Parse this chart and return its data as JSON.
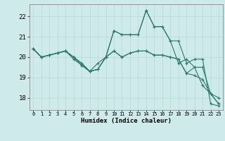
{
  "title": "",
  "xlabel": "Humidex (Indice chaleur)",
  "ylabel": "",
  "background_color": "#ceeaea",
  "line_color": "#2a7a6a",
  "grid_color": "#b8d8d8",
  "x_ticks": [
    0,
    1,
    2,
    3,
    4,
    5,
    6,
    7,
    8,
    9,
    10,
    11,
    12,
    13,
    14,
    15,
    16,
    17,
    18,
    19,
    20,
    21,
    22,
    23
  ],
  "y_ticks": [
    18,
    19,
    20,
    21,
    22
  ],
  "ylim": [
    17.4,
    22.6
  ],
  "xlim": [
    -0.5,
    23.5
  ],
  "series": [
    [
      20.4,
      20.0,
      20.1,
      20.2,
      20.3,
      20.0,
      19.6,
      19.3,
      19.7,
      20.0,
      21.3,
      21.1,
      21.1,
      21.1,
      22.3,
      21.5,
      21.5,
      20.8,
      20.8,
      19.7,
      19.9,
      19.9,
      17.7,
      17.6
    ],
    [
      20.4,
      20.0,
      20.1,
      20.2,
      20.3,
      20.0,
      19.7,
      19.3,
      19.4,
      20.0,
      20.3,
      20.0,
      20.2,
      20.3,
      20.3,
      20.1,
      20.1,
      20.0,
      19.9,
      19.2,
      19.1,
      18.9,
      18.2,
      17.7
    ],
    [
      20.4,
      20.0,
      20.1,
      20.2,
      20.3,
      19.9,
      19.6,
      19.3,
      19.4,
      20.0,
      21.3,
      21.1,
      21.1,
      21.1,
      22.3,
      21.5,
      21.5,
      20.8,
      19.7,
      19.9,
      19.5,
      18.6,
      18.2,
      18.0
    ],
    [
      20.4,
      20.0,
      20.1,
      20.2,
      20.3,
      20.0,
      19.7,
      19.3,
      19.4,
      20.0,
      20.3,
      20.0,
      20.2,
      20.3,
      20.3,
      20.1,
      20.1,
      20.0,
      19.9,
      19.2,
      19.5,
      19.5,
      18.2,
      17.7
    ]
  ]
}
